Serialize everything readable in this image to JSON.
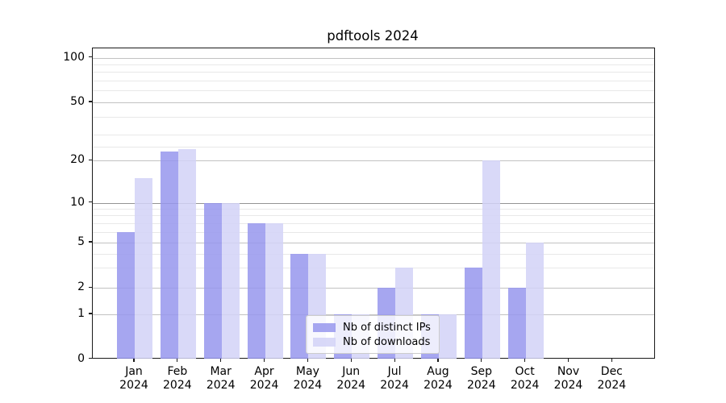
{
  "title": "pdftools 2024",
  "chart_data": {
    "type": "bar",
    "title": "pdftools 2024",
    "x_year": "2024",
    "categories": [
      "Jan",
      "Feb",
      "Mar",
      "Apr",
      "May",
      "Jun",
      "Jul",
      "Aug",
      "Sep",
      "Oct",
      "Nov",
      "Dec"
    ],
    "series": [
      {
        "name": "Nb of distinct IPs",
        "color": "#a7a7f0",
        "values": [
          6,
          23,
          10,
          7,
          4,
          1,
          2,
          1,
          3,
          2,
          0,
          0
        ]
      },
      {
        "name": "Nb of downloads",
        "color": "#d9d9f8",
        "values": [
          15,
          24,
          10,
          7,
          4,
          1,
          3,
          1,
          20,
          5,
          0,
          0
        ]
      }
    ],
    "y_axis": {
      "scale": "asinh-log",
      "major_ticks": [
        0,
        1,
        2,
        5,
        10,
        20,
        50,
        100
      ],
      "minor_gridlines": [
        3,
        4,
        6,
        7,
        8,
        9,
        25,
        30,
        40,
        60,
        70,
        80,
        90
      ],
      "emphasized_gridline": 10,
      "range_top": 115
    },
    "legend": {
      "position": "lower center"
    },
    "grid": true
  },
  "colors": {
    "background": "#ffffff",
    "spine": "#1a1a1a",
    "text": "#000000"
  }
}
